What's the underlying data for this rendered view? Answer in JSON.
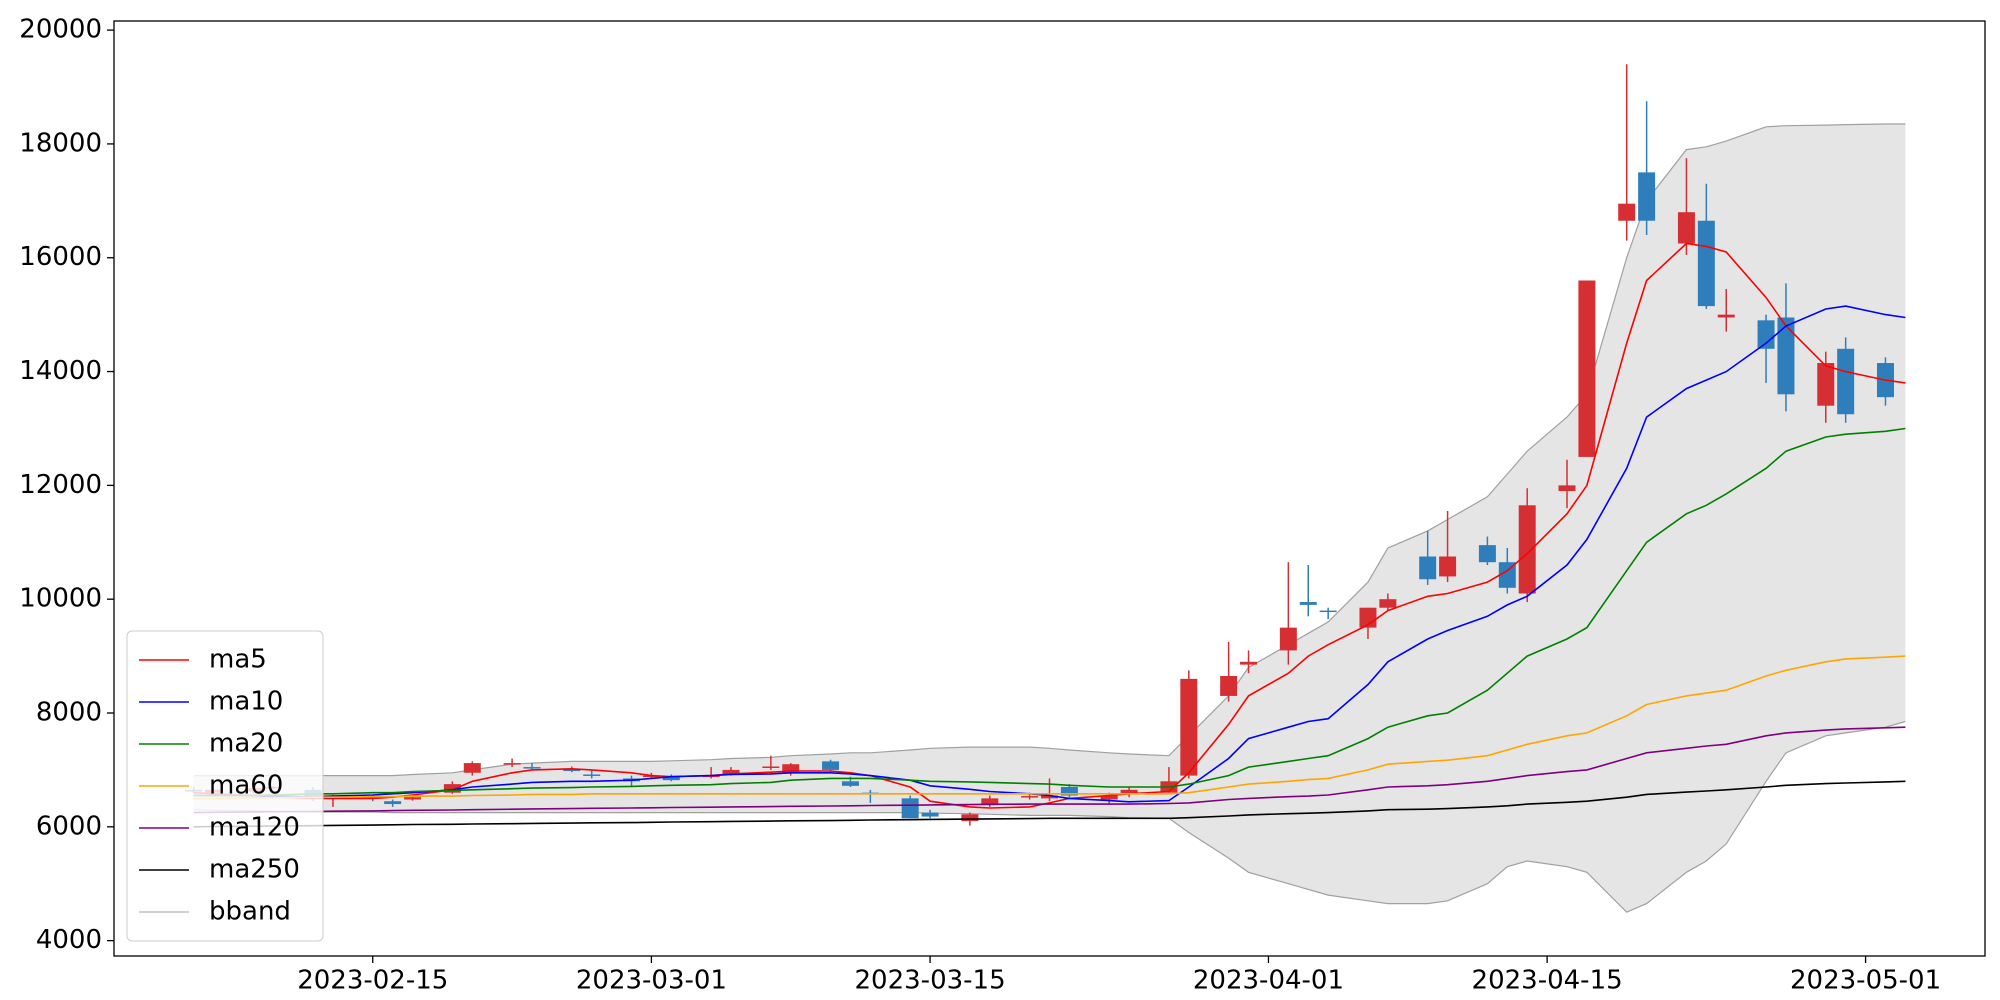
{
  "chart_data": {
    "type": "candlestick",
    "x": [
      "2023-02-06",
      "2023-02-07",
      "2023-02-09",
      "2023-02-10",
      "2023-02-12",
      "2023-02-13",
      "2023-02-15",
      "2023-02-16",
      "2023-02-17",
      "2023-02-19",
      "2023-02-20",
      "2023-02-22",
      "2023-02-23",
      "2023-02-25",
      "2023-02-26",
      "2023-02-28",
      "2023-03-01",
      "2023-03-02",
      "2023-03-04",
      "2023-03-05",
      "2023-03-07",
      "2023-03-08",
      "2023-03-10",
      "2023-03-11",
      "2023-03-12",
      "2023-03-14",
      "2023-03-15",
      "2023-03-17",
      "2023-03-18",
      "2023-03-20",
      "2023-03-21",
      "2023-03-22",
      "2023-03-24",
      "2023-03-25",
      "2023-03-27",
      "2023-03-28",
      "2023-03-30",
      "2023-03-31",
      "2023-04-02",
      "2023-04-03",
      "2023-04-04",
      "2023-04-06",
      "2023-04-07",
      "2023-04-09",
      "2023-04-10",
      "2023-04-12",
      "2023-04-13",
      "2023-04-14",
      "2023-04-16",
      "2023-04-17",
      "2023-04-19",
      "2023-04-20",
      "2023-04-22",
      "2023-04-23",
      "2023-04-24",
      "2023-04-26",
      "2023-04-27",
      "2023-04-29",
      "2023-04-30",
      "2023-05-02",
      "2023-05-03"
    ],
    "open": [
      6650,
      6600,
      6620,
      6680,
      6650,
      6500,
      6520,
      6450,
      6480,
      6600,
      6950,
      7100,
      7050,
      7020,
      6920,
      6850,
      6880,
      6880,
      6880,
      6920,
      7050,
      6950,
      7150,
      6800,
      6600,
      6500,
      6250,
      6100,
      6380,
      6520,
      6500,
      6700,
      6480,
      6580,
      6600,
      6900,
      8300,
      8850,
      9100,
      9950,
      9800,
      9500,
      9850,
      10750,
      10400,
      10950,
      10650,
      10100,
      11900,
      12500,
      16650,
      17500,
      16250,
      16650,
      14950,
      14900,
      14950,
      13400,
      14400,
      14150,
      null
    ],
    "high": [
      6700,
      6680,
      6700,
      6720,
      6700,
      6560,
      6560,
      6480,
      6560,
      6800,
      7150,
      7200,
      7120,
      7060,
      7000,
      6900,
      6950,
      6920,
      7050,
      7050,
      7250,
      7120,
      7180,
      6880,
      6650,
      6550,
      6300,
      6250,
      6550,
      6600,
      6850,
      6750,
      6600,
      6700,
      7050,
      8750,
      9250,
      9100,
      10650,
      10600,
      9850,
      9850,
      10100,
      11200,
      11550,
      11100,
      10900,
      11950,
      12450,
      15600,
      19400,
      18750,
      17750,
      17300,
      15450,
      15000,
      15550,
      14350,
      14600,
      14250,
      null
    ],
    "low": [
      6600,
      6550,
      6580,
      6640,
      6450,
      6350,
      6450,
      6350,
      6460,
      6580,
      6900,
      7050,
      7000,
      6960,
      6850,
      6700,
      6850,
      6800,
      6850,
      6900,
      7000,
      6900,
      6950,
      6700,
      6420,
      6150,
      6150,
      6020,
      6350,
      6480,
      6450,
      6520,
      6400,
      6520,
      6600,
      6850,
      8200,
      8700,
      8850,
      9700,
      9650,
      9300,
      9800,
      10250,
      10300,
      10600,
      10100,
      9950,
      11600,
      12500,
      16300,
      16400,
      16050,
      15100,
      14700,
      13800,
      13300,
      13100,
      13100,
      13400,
      null
    ],
    "close": [
      6620,
      6650,
      6680,
      6700,
      6500,
      6520,
      6500,
      6400,
      6520,
      6750,
      7120,
      7120,
      7040,
      6980,
      6900,
      6800,
      6900,
      6820,
      6900,
      7000,
      7060,
      7100,
      7000,
      6720,
      6580,
      6150,
      6180,
      6220,
      6500,
      6540,
      6550,
      6550,
      6550,
      6650,
      6800,
      8600,
      8650,
      8900,
      9500,
      9900,
      9780,
      9850,
      10000,
      10350,
      10750,
      10650,
      10200,
      11650,
      12000,
      15600,
      16950,
      16650,
      16800,
      15150,
      15000,
      14400,
      13600,
      14150,
      13250,
      13550,
      null
    ],
    "up_color": "#d62f33",
    "down_color": "#2f7ebc",
    "series": [
      {
        "name": "ma5",
        "color": "#ff0000",
        "values": [
          6600,
          6580,
          6550,
          6520,
          6500,
          6500,
          6500,
          6520,
          6560,
          6650,
          6800,
          6950,
          7000,
          7020,
          7000,
          6950,
          6900,
          6880,
          6900,
          6930,
          6960,
          6980,
          6980,
          6950,
          6900,
          6700,
          6450,
          6350,
          6330,
          6350,
          6420,
          6500,
          6550,
          6580,
          6620,
          6950,
          7800,
          8300,
          8700,
          9000,
          9200,
          9550,
          9800,
          10050,
          10100,
          10300,
          10500,
          10800,
          11500,
          12000,
          14500,
          15600,
          16250,
          16200,
          16100,
          15300,
          14800,
          14100,
          14000,
          13850,
          13800
        ]
      },
      {
        "name": "ma10",
        "color": "#0000ff",
        "values": [
          6550,
          6550,
          6550,
          6540,
          6530,
          6540,
          6560,
          6580,
          6600,
          6650,
          6700,
          6750,
          6780,
          6800,
          6800,
          6820,
          6850,
          6880,
          6900,
          6920,
          6930,
          6950,
          6950,
          6930,
          6900,
          6820,
          6720,
          6660,
          6620,
          6580,
          6550,
          6500,
          6460,
          6440,
          6460,
          6700,
          7200,
          7550,
          7750,
          7850,
          7900,
          8500,
          8900,
          9300,
          9450,
          9700,
          9900,
          10050,
          10600,
          11050,
          12300,
          13200,
          13700,
          13850,
          14000,
          14500,
          14800,
          15100,
          15150,
          15000,
          14950
        ]
      },
      {
        "name": "ma20",
        "color": "#008000",
        "values": [
          6550,
          6550,
          6550,
          6560,
          6580,
          6580,
          6600,
          6600,
          6620,
          6640,
          6650,
          6670,
          6680,
          6690,
          6700,
          6710,
          6720,
          6730,
          6740,
          6760,
          6780,
          6820,
          6850,
          6850,
          6850,
          6820,
          6800,
          6790,
          6780,
          6760,
          6750,
          6730,
          6700,
          6700,
          6700,
          6750,
          6900,
          7050,
          7150,
          7200,
          7250,
          7550,
          7750,
          7950,
          8000,
          8400,
          8700,
          9000,
          9300,
          9500,
          10500,
          11000,
          11500,
          11650,
          11850,
          12300,
          12600,
          12850,
          12900,
          12950,
          13000
        ]
      },
      {
        "name": "ma60",
        "color": "#ffa500",
        "values": [
          6500,
          6500,
          6510,
          6510,
          6520,
          6520,
          6530,
          6530,
          6540,
          6540,
          6550,
          6560,
          6570,
          6570,
          6580,
          6580,
          6580,
          6580,
          6580,
          6580,
          6580,
          6580,
          6580,
          6580,
          6580,
          6580,
          6580,
          6580,
          6580,
          6580,
          6580,
          6580,
          6580,
          6580,
          6580,
          6600,
          6700,
          6750,
          6800,
          6830,
          6850,
          7000,
          7100,
          7150,
          7170,
          7250,
          7350,
          7450,
          7600,
          7650,
          7950,
          8150,
          8300,
          8350,
          8400,
          8650,
          8750,
          8900,
          8950,
          8980,
          9000
        ]
      },
      {
        "name": "ma120",
        "color": "#800080",
        "values": [
          6250,
          6255,
          6260,
          6265,
          6270,
          6275,
          6280,
          6285,
          6290,
          6295,
          6300,
          6310,
          6315,
          6320,
          6325,
          6330,
          6335,
          6340,
          6345,
          6350,
          6355,
          6360,
          6365,
          6370,
          6375,
          6380,
          6385,
          6390,
          6395,
          6400,
          6400,
          6400,
          6400,
          6400,
          6410,
          6420,
          6480,
          6500,
          6530,
          6540,
          6560,
          6650,
          6700,
          6720,
          6740,
          6800,
          6850,
          6900,
          6970,
          7000,
          7200,
          7300,
          7380,
          7420,
          7450,
          7600,
          7650,
          7700,
          7720,
          7740,
          7750
        ]
      },
      {
        "name": "ma250",
        "color": "#000000",
        "values": [
          6000,
          6005,
          6010,
          6015,
          6020,
          6025,
          6030,
          6035,
          6040,
          6045,
          6050,
          6055,
          6060,
          6065,
          6070,
          6075,
          6080,
          6085,
          6090,
          6095,
          6100,
          6105,
          6110,
          6115,
          6120,
          6125,
          6130,
          6135,
          6140,
          6145,
          6150,
          6150,
          6150,
          6150,
          6150,
          6160,
          6190,
          6210,
          6230,
          6240,
          6250,
          6280,
          6300,
          6310,
          6320,
          6350,
          6370,
          6400,
          6430,
          6450,
          6520,
          6570,
          6610,
          6630,
          6650,
          6700,
          6730,
          6760,
          6770,
          6790,
          6800
        ]
      }
    ],
    "band": {
      "name": "bband",
      "color": "#a0a0a0",
      "fill": "#e5e5e5",
      "upper": [
        6900,
        6900,
        6900,
        6900,
        6900,
        6900,
        6900,
        6900,
        6920,
        6950,
        7000,
        7100,
        7120,
        7150,
        7150,
        7150,
        7150,
        7160,
        7180,
        7200,
        7220,
        7250,
        7280,
        7300,
        7300,
        7350,
        7380,
        7400,
        7400,
        7400,
        7380,
        7350,
        7300,
        7280,
        7250,
        7600,
        8300,
        8800,
        9200,
        9400,
        9600,
        10300,
        10900,
        11200,
        11400,
        11800,
        12200,
        12600,
        13200,
        13600,
        16000,
        17000,
        17900,
        17950,
        18050,
        18300,
        18320,
        18330,
        18340,
        18350,
        18350
      ],
      "lower": [
        6300,
        6290,
        6280,
        6270,
        6260,
        6260,
        6260,
        6250,
        6250,
        6250,
        6250,
        6250,
        6250,
        6250,
        6250,
        6250,
        6250,
        6250,
        6250,
        6250,
        6250,
        6250,
        6250,
        6250,
        6250,
        6250,
        6240,
        6230,
        6220,
        6200,
        6200,
        6200,
        6180,
        6160,
        6150,
        5900,
        5450,
        5200,
        5000,
        4900,
        4800,
        4700,
        4650,
        4650,
        4700,
        5000,
        5300,
        5400,
        5300,
        5200,
        4500,
        4650,
        5200,
        5400,
        5700,
        6800,
        7300,
        7600,
        7650,
        7750,
        7850
      ]
    },
    "xlim": [
      "2023-02-02",
      "2023-05-07"
    ],
    "xticks": [
      "2023-02-15",
      "2023-03-01",
      "2023-03-15",
      "2023-04-01",
      "2023-04-15",
      "2023-05-01"
    ],
    "ylim": [
      3730,
      20160
    ],
    "yticks": [
      4000,
      6000,
      8000,
      10000,
      12000,
      14000,
      16000,
      18000,
      20000
    ],
    "legend": "lower left"
  }
}
